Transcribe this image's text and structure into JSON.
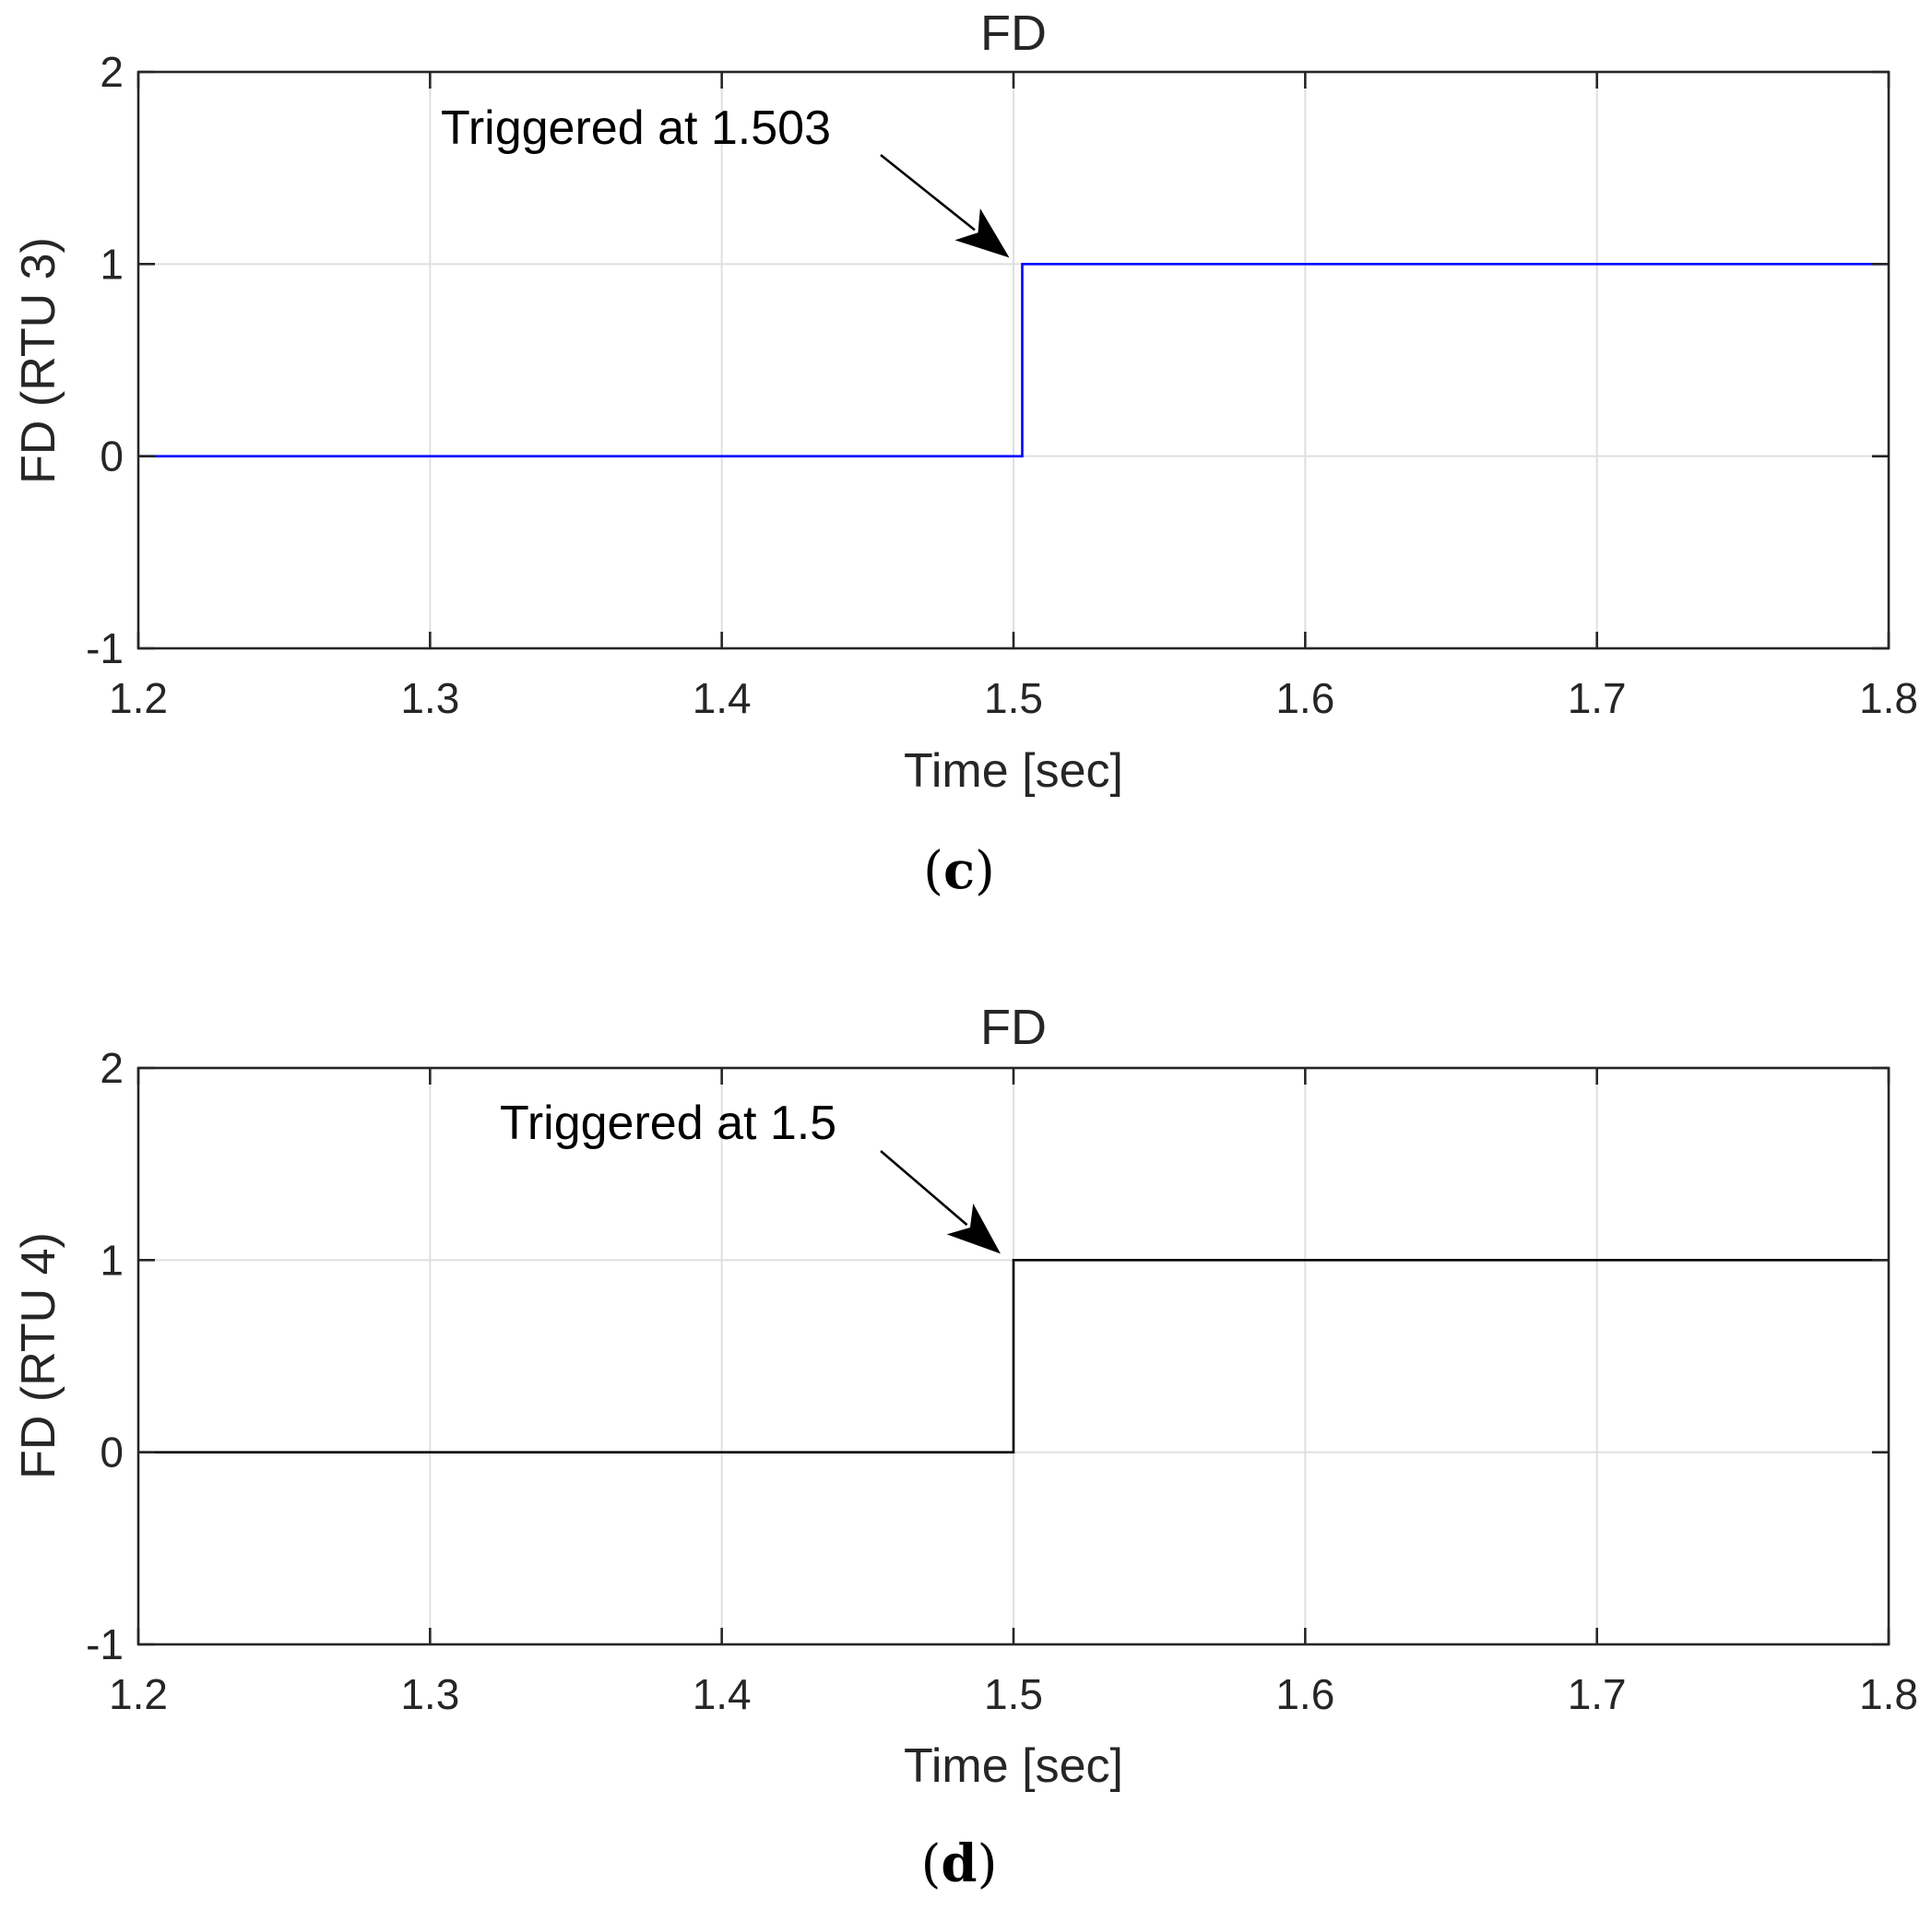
{
  "chart_data": [
    {
      "type": "line",
      "title": "FD",
      "xlabel": "Time [sec]",
      "ylabel": "FD (RTU 3)",
      "xlim": [
        1.2,
        1.8
      ],
      "ylim": [
        -1,
        2
      ],
      "x_ticks": [
        "1.2",
        "1.3",
        "1.4",
        "1.5",
        "1.6",
        "1.7",
        "1.8"
      ],
      "y_ticks": [
        "-1",
        "0",
        "1",
        "2"
      ],
      "grid": true,
      "line_color": "#0000ff",
      "series": [
        {
          "x": [
            1.2,
            1.503,
            1.503,
            1.8
          ],
          "y": [
            0,
            0,
            1,
            1
          ]
        }
      ],
      "annotation": {
        "text": "Triggered at 1.503",
        "point": [
          1.503,
          1
        ]
      },
      "caption": {
        "open": "(",
        "letter": "c",
        "close": ")"
      }
    },
    {
      "type": "line",
      "title": "FD",
      "xlabel": "Time [sec]",
      "ylabel": "FD (RTU 4)",
      "xlim": [
        1.2,
        1.8
      ],
      "ylim": [
        -1,
        2
      ],
      "x_ticks": [
        "1.2",
        "1.3",
        "1.4",
        "1.5",
        "1.6",
        "1.7",
        "1.8"
      ],
      "y_ticks": [
        "-1",
        "0",
        "1",
        "2"
      ],
      "grid": true,
      "line_color": "#000000",
      "series": [
        {
          "x": [
            1.2,
            1.5,
            1.5,
            1.8
          ],
          "y": [
            0,
            0,
            1,
            1
          ]
        }
      ],
      "annotation": {
        "text": "Triggered at 1.5",
        "point": [
          1.5,
          1
        ]
      },
      "caption": {
        "open": "(",
        "letter": "d",
        "close": ")"
      }
    }
  ]
}
